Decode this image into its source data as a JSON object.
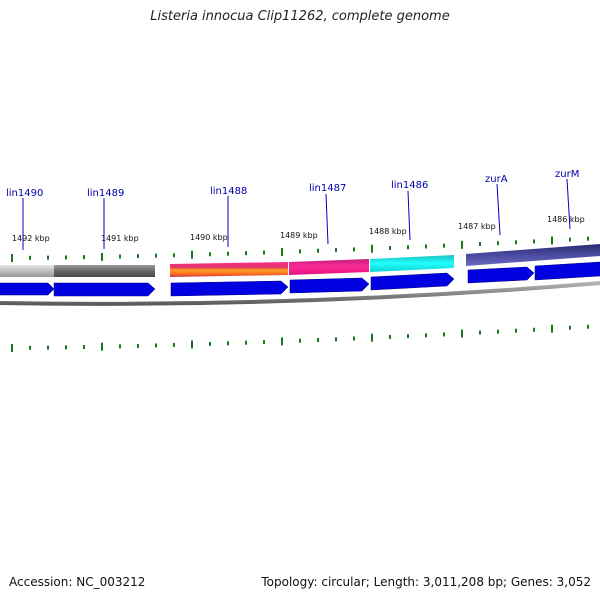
{
  "title": "Listeria innocua Clip11262, complete genome",
  "genes": [
    {
      "label": "lin1490"
    },
    {
      "label": "lin1489"
    },
    {
      "label": "lin1488"
    },
    {
      "label": "lin1487"
    },
    {
      "label": "lin1486"
    },
    {
      "label": "zurA"
    },
    {
      "label": "zurM"
    }
  ],
  "positions": [
    "1492 kbp",
    "1491 kbp",
    "1490 kbp",
    "1489 kbp",
    "1488 kbp",
    "1487 kbp",
    "1486 kbp"
  ],
  "footer": {
    "accession": "Accession: NC_003212",
    "summary": "Topology: circular; Length: 3,011,208 bp; Genes: 3,052"
  },
  "colors": {
    "gene_label": "#0000a8",
    "tick": "#1a7a1a",
    "arrow": "#0000e0",
    "backbone": "#777777"
  }
}
